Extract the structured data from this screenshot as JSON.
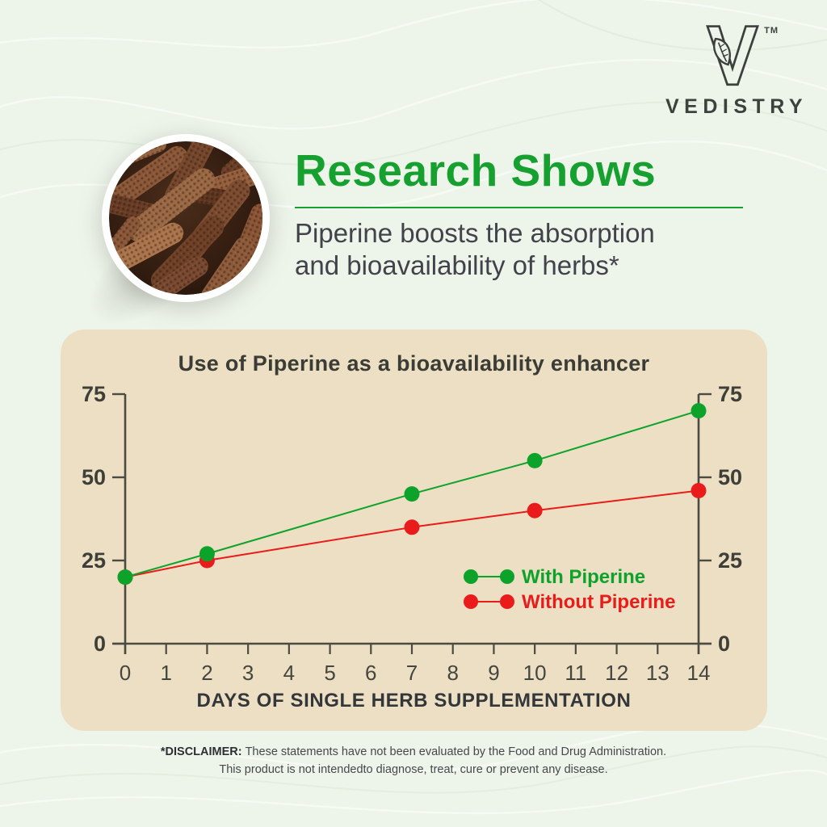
{
  "brand": {
    "wordmark": "VEDISTRY",
    "trademark": "TM",
    "logo_icon": "v-leaf-logo"
  },
  "hero": {
    "headline": "Research Shows",
    "subtitle_line1": "Piperine boosts the absorption",
    "subtitle_line2": "and bioavailability of herbs*",
    "image": "bowl-of-long-pepper-fruits"
  },
  "chart_data": {
    "type": "line",
    "title": "Use of Piperine as a bioavailability enhancer",
    "xlabel": "DAYS OF SINGLE HERB SUPPLEMENTATION",
    "ylabel": "",
    "x": [
      0,
      2,
      7,
      10,
      14
    ],
    "x_ticks": [
      0,
      1,
      2,
      3,
      4,
      5,
      6,
      7,
      8,
      9,
      10,
      11,
      12,
      13,
      14
    ],
    "y_ticks": [
      0,
      25,
      50,
      75
    ],
    "xlim": [
      0,
      14
    ],
    "ylim": [
      0,
      75
    ],
    "grid": false,
    "y_axis_sides": "both",
    "legend_position": "inside-lower-right",
    "series": [
      {
        "name": "With Piperine",
        "color": "#0da32b",
        "values": [
          20,
          27,
          45,
          55,
          70
        ]
      },
      {
        "name": "Without Piperine",
        "color": "#ea1b1b",
        "values": [
          20,
          25,
          35,
          40,
          46
        ]
      }
    ]
  },
  "disclaimer": {
    "label": "*DISCLAIMER:",
    "line1": "These statements have not been evaluated by the Food and Drug Administration.",
    "line2": "This product is not intendedto diagnose, treat, cure or prevent any disease."
  },
  "palette": {
    "page_bg": "#edf4ea",
    "card_bg": "#ecdfc3",
    "accent_green": "#16a02f",
    "series_green": "#0da32b",
    "series_red": "#ea1b1b",
    "axis": "#4c4b42",
    "text_dark": "#40444a"
  }
}
